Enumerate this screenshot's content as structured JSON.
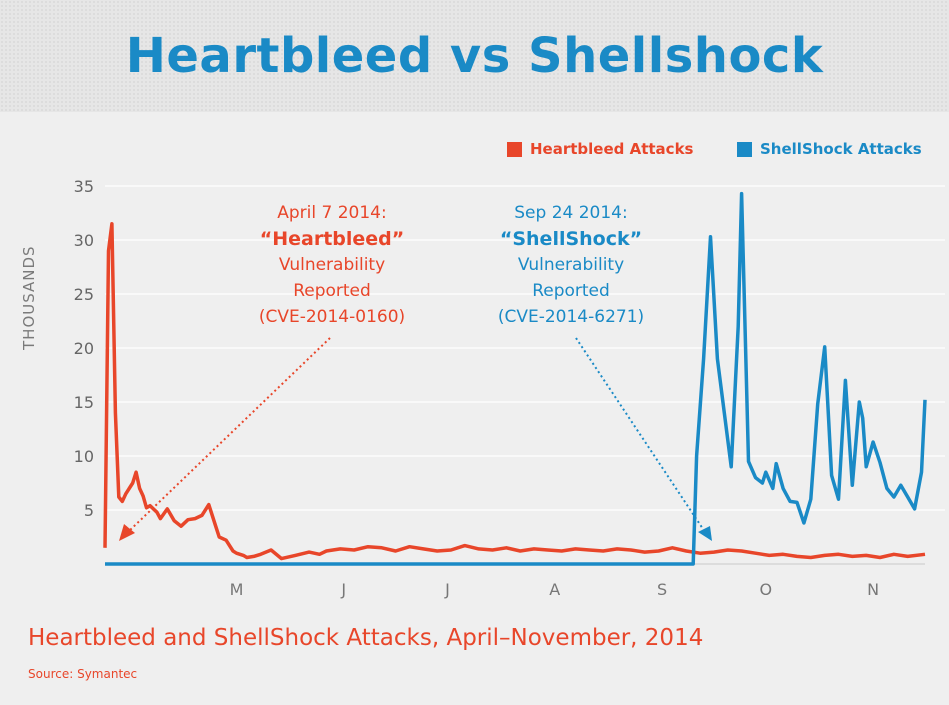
{
  "title": "Heartbleed vs Shellshock",
  "caption": "Heartbleed and ShellShock Attacks, April–November, 2014",
  "source": "Source: Symantec",
  "legend": [
    {
      "label": "Heartbleed Attacks",
      "color": "#e8462a"
    },
    {
      "label": "ShellShock Attacks",
      "color": "#1a8ac6"
    }
  ],
  "annotations": {
    "heartbleed": {
      "line1": "April 7 2014:",
      "name": "“Heartbleed”",
      "line3": "Vulnerability",
      "line4": "Reported",
      "line5": "(CVE-2014-0160)",
      "color": "#e8462a"
    },
    "shellshock": {
      "line1": "Sep 24 2014:",
      "name": "“ShellShock”",
      "line3": "Vulnerability",
      "line4": "Reported",
      "line5": "(CVE-2014-6271)",
      "color": "#1a8ac6"
    }
  },
  "chart_data": {
    "type": "line",
    "ylabel": "THOUSANDS",
    "ylim": [
      0,
      35
    ],
    "yticks": [
      5,
      10,
      15,
      20,
      25,
      30,
      35
    ],
    "xticklabels": [
      "M",
      "J",
      "J",
      "A",
      "S",
      "O",
      "N"
    ],
    "grid": true,
    "legend_position": "top-right",
    "series": [
      {
        "name": "Heartbleed Attacks",
        "color": "#e8462a",
        "x": [
          "2014-04-07",
          "2014-04-08",
          "2014-04-09",
          "2014-04-10",
          "2014-04-11",
          "2014-04-12",
          "2014-04-13",
          "2014-04-15",
          "2014-04-16",
          "2014-04-17",
          "2014-04-18",
          "2014-04-19",
          "2014-04-20",
          "2014-04-22",
          "2014-04-23",
          "2014-04-25",
          "2014-04-27",
          "2014-04-29",
          "2014-05-01",
          "2014-05-03",
          "2014-05-05",
          "2014-05-07",
          "2014-05-09",
          "2014-05-10",
          "2014-05-12",
          "2014-05-14",
          "2014-05-15",
          "2014-05-17",
          "2014-05-18",
          "2014-05-20",
          "2014-05-22",
          "2014-05-25",
          "2014-05-28",
          "2014-06-01",
          "2014-06-05",
          "2014-06-08",
          "2014-06-10",
          "2014-06-14",
          "2014-06-18",
          "2014-06-22",
          "2014-06-26",
          "2014-06-30",
          "2014-07-04",
          "2014-07-08",
          "2014-07-12",
          "2014-07-16",
          "2014-07-20",
          "2014-07-24",
          "2014-07-28",
          "2014-08-01",
          "2014-08-05",
          "2014-08-09",
          "2014-08-13",
          "2014-08-17",
          "2014-08-21",
          "2014-08-25",
          "2014-08-29",
          "2014-09-02",
          "2014-09-06",
          "2014-09-10",
          "2014-09-14",
          "2014-09-18",
          "2014-09-22",
          "2014-09-26",
          "2014-09-30",
          "2014-10-04",
          "2014-10-08",
          "2014-10-12",
          "2014-10-16",
          "2014-10-20",
          "2014-10-24",
          "2014-10-28",
          "2014-11-01",
          "2014-11-05",
          "2014-11-09",
          "2014-11-13",
          "2014-11-17",
          "2014-11-21",
          "2014-11-25",
          "2014-11-30"
        ],
        "y": [
          1.5,
          29,
          31.5,
          14,
          6.2,
          5.8,
          6.5,
          7.5,
          8.5,
          7,
          6.3,
          5.2,
          5.4,
          4.8,
          4.2,
          5.1,
          4,
          3.5,
          4.1,
          4.2,
          4.5,
          5.5,
          3.5,
          2.5,
          2.2,
          1.2,
          1,
          0.8,
          0.6,
          0.7,
          0.9,
          1.3,
          0.5,
          0.8,
          1.1,
          0.9,
          1.2,
          1.4,
          1.3,
          1.6,
          1.5,
          1.2,
          1.6,
          1.4,
          1.2,
          1.3,
          1.7,
          1.4,
          1.3,
          1.5,
          1.2,
          1.4,
          1.3,
          1.2,
          1.4,
          1.3,
          1.2,
          1.4,
          1.3,
          1.1,
          1.2,
          1.5,
          1.2,
          1,
          1.1,
          1.3,
          1.2,
          1,
          0.8,
          0.9,
          0.7,
          0.6,
          0.8,
          0.9,
          0.7,
          0.8,
          0.6,
          0.9,
          0.7,
          0.9
        ]
      },
      {
        "name": "ShellShock Attacks",
        "color": "#1a8ac6",
        "x": [
          "2014-04-07",
          "2014-09-24",
          "2014-09-25",
          "2014-09-27",
          "2014-09-29",
          "2014-10-01",
          "2014-10-03",
          "2014-10-05",
          "2014-10-07",
          "2014-10-08",
          "2014-10-10",
          "2014-10-12",
          "2014-10-14",
          "2014-10-15",
          "2014-10-17",
          "2014-10-18",
          "2014-10-20",
          "2014-10-22",
          "2014-10-24",
          "2014-10-26",
          "2014-10-28",
          "2014-10-30",
          "2014-11-01",
          "2014-11-02",
          "2014-11-03",
          "2014-11-05",
          "2014-11-07",
          "2014-11-09",
          "2014-11-11",
          "2014-11-12",
          "2014-11-13",
          "2014-11-15",
          "2014-11-17",
          "2014-11-19",
          "2014-11-21",
          "2014-11-23",
          "2014-11-25",
          "2014-11-27",
          "2014-11-29",
          "2014-11-30"
        ],
        "y": [
          0,
          0,
          10,
          19,
          30.3,
          19,
          14,
          9,
          22,
          34.3,
          9.5,
          8,
          7.5,
          8.5,
          7,
          9.3,
          7,
          5.8,
          5.7,
          3.8,
          6,
          14.8,
          20.1,
          14.3,
          8.2,
          6,
          17,
          7.3,
          15,
          13.5,
          9,
          11.3,
          9.4,
          7,
          6.2,
          7.3,
          6.2,
          5.1,
          8.5,
          15.2
        ]
      }
    ]
  }
}
